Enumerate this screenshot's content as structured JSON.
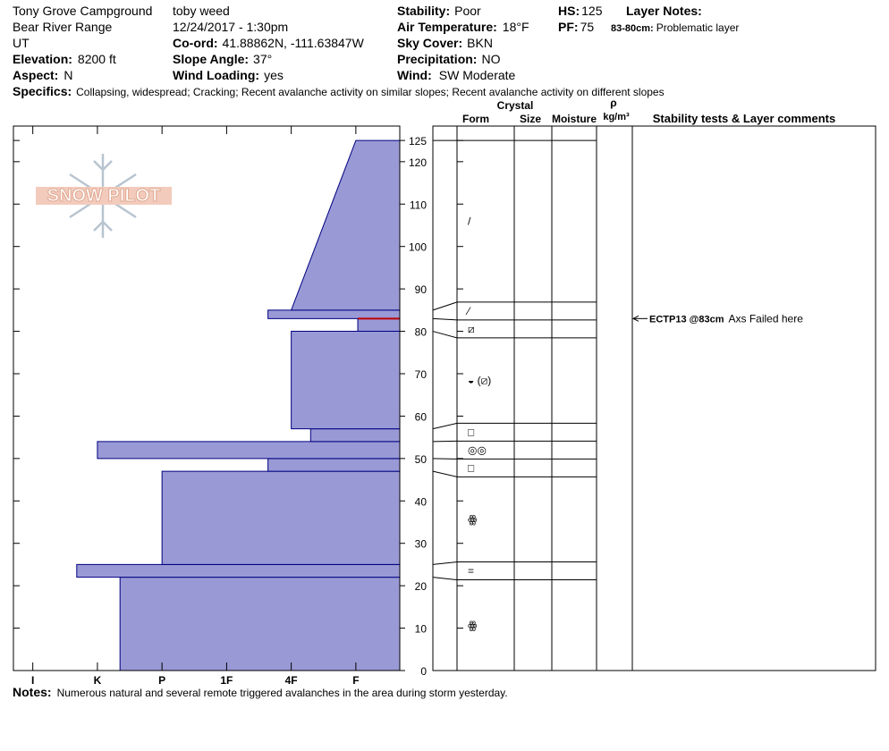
{
  "header": {
    "location": "Tony Grove Campground",
    "range": "Bear River Range",
    "state": "UT",
    "elevation": {
      "label": "Elevation:",
      "value": "8200 ft"
    },
    "aspect": {
      "label": "Aspect:",
      "value": "N"
    },
    "observer": "toby weed",
    "datetime": "12/24/2017 - 1:30pm",
    "coord": {
      "label": "Co-ord:",
      "value": "41.88862N, -111.63847W"
    },
    "slope_angle": {
      "label": "Slope Angle:",
      "value": "37°"
    },
    "wind_loading": {
      "label": "Wind Loading:",
      "value": "yes"
    },
    "stability": {
      "label": "Stability:",
      "value": "Poor"
    },
    "air_temperature": {
      "label": "Air Temperature:",
      "value": "18°F"
    },
    "sky_cover": {
      "label": "Sky Cover:",
      "value": "BKN"
    },
    "precipitation": {
      "label": "Precipitation:",
      "value": "NO"
    },
    "wind": {
      "label": "Wind:",
      "value": "SW Moderate"
    },
    "hs": {
      "label": "HS:",
      "value": "125"
    },
    "pf": {
      "label": "PF:",
      "value": "75"
    },
    "layer_notes": {
      "label": "Layer Notes:",
      "items": [
        {
          "range": "83-80cm:",
          "text": "Problematic layer"
        }
      ]
    },
    "specifics": {
      "label": "Specifics:",
      "value": "Collapsing, widespread;  Cracking;  Recent avalanche activity on similar slopes;  Recent avalanche activity on different slopes"
    }
  },
  "logo": "SNOW PILOT",
  "table": {
    "crystal": "Crystal",
    "form": "Form",
    "size": "Size",
    "moisture": "Moisture",
    "density": "ρ",
    "density_unit": "kg/m³",
    "comments": "Stability tests & Layer comments"
  },
  "chart_data": {
    "type": "snow_profile",
    "xlim": [
      6.3,
      0.32
    ],
    "xticks": [
      {
        "value": 6,
        "label": "I"
      },
      {
        "value": 5,
        "label": "K"
      },
      {
        "value": 4,
        "label": "P"
      },
      {
        "value": 3,
        "label": "1F"
      },
      {
        "value": 2,
        "label": "4F"
      },
      {
        "value": 1,
        "label": "F"
      }
    ],
    "ylim": [
      0,
      128.4
    ],
    "yticks": [
      0,
      10,
      20,
      30,
      40,
      50,
      60,
      70,
      80,
      90,
      100,
      110,
      120,
      125
    ],
    "color": "#9999d6",
    "edge_color": "#000080",
    "test_color": "#c00000",
    "layers": [
      {
        "bottom": 0,
        "top": 22,
        "hardness": 4.65,
        "form": "ꙮ"
      },
      {
        "bottom": 22,
        "top": 25,
        "hardness": 5.32,
        "form": "="
      },
      {
        "bottom": 25,
        "top": 47,
        "hardness": 4,
        "form": "ꙮ"
      },
      {
        "bottom": 47,
        "top": 50,
        "hardness": 2.36,
        "form": "□"
      },
      {
        "bottom": 50,
        "top": 54,
        "hardness": 5,
        "form": "◎◎"
      },
      {
        "bottom": 54,
        "top": 57,
        "hardness": 1.7,
        "form": "□"
      },
      {
        "bottom": 57,
        "top": 80,
        "hardness": 2,
        "form": "◒ (⧄)"
      },
      {
        "bottom": 80,
        "top": 83,
        "hardness": 0.97,
        "form": "⧄"
      },
      {
        "bottom": 83,
        "top": 85,
        "hardness": 2.36,
        "form": "⁄"
      },
      {
        "bottom": 85,
        "top": 125,
        "hardness": 2,
        "hardness_top": 1,
        "form": "/"
      }
    ],
    "tests": [
      {
        "height": 83,
        "label": "ECTP13 @83cm",
        "comment": "Axs Failed here"
      }
    ]
  },
  "notes": {
    "label": "Notes:",
    "value": "Numerous natural and several remote triggered avalanches in the area during storm yesterday."
  }
}
